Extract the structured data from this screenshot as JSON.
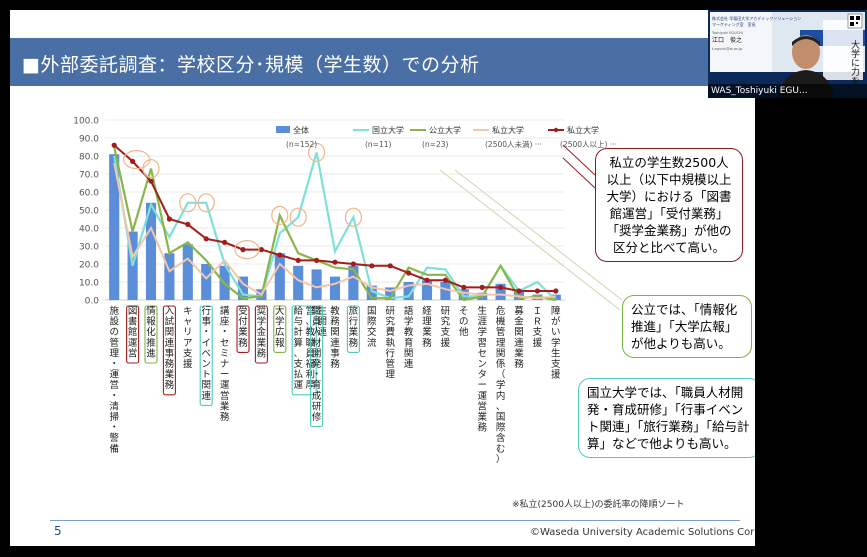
{
  "slide": {
    "title": "■外部委託調査：学校区分･規模（学生数）での分析",
    "page_number": "5",
    "copyright": "©Waseda University Academic Solutions Corporation",
    "note": "※私立(2500人以上)の委託率の降順ソート"
  },
  "callouts": {
    "private": "私立の学生数2500人以上（以下中規模以上大学）における「図書館運営」「受付業務」「奨学金業務」が他の区分と比べて高い。",
    "public": "公立では、「情報化推進」「大学広報」が他よりも高い。",
    "national": "国立大学では、「職員人材開発・育成研修」「行事イベント関連」「旅行業務」「給与計算」などで他よりも高い。"
  },
  "video": {
    "participant_id": "WAS_Toshiyuki EGU...",
    "banner_text": "大学に力を",
    "company_line1": "株式会社 早稲田大学アカデミックソリューション",
    "company_line2": "マーケティング室　室長",
    "name_line": "Toshiyuki EGUCHI",
    "name_ja": "江口　俊之",
    "email": "t.eguchi@w-as.jp"
  },
  "colors": {
    "banner": "#4a6fa5",
    "all": "#5b8ed8",
    "national": "#7ee0d6",
    "public": "#8bb54a",
    "private_small": "#f1c6ad",
    "private_large": "#a31d1d",
    "circle": "#f2b48a"
  },
  "chart_data": {
    "type": "bar",
    "ylim": [
      0,
      100
    ],
    "yticks": [
      "0.0",
      "10.0",
      "20.0",
      "30.0",
      "40.0",
      "50.0",
      "60.0",
      "70.0",
      "80.0",
      "90.0",
      "100.0"
    ],
    "categories": [
      "施設の管理・運営・清掃・警備",
      "図書館運営",
      "情報化推進",
      "入試関連事務業務",
      "キャリア支援",
      "行事・イベント関連",
      "講座・セミナー運営業務",
      "受付業務",
      "奨学金業務",
      "大学広報",
      "給与計算、支払運営、教職員福利厚生関連",
      "職員人材開発・育成研修",
      "教務関連事務",
      "旅行業務",
      "国際交流",
      "研究費執行管理",
      "語学教育関連",
      "経理業務",
      "研究支援",
      "その他",
      "生涯学習センター運営業務",
      "危機管理関係（学内、国際含む）",
      "募金関連業務",
      "ＩＲ支援",
      "障がい学生支援"
    ],
    "series": [
      {
        "name": "全体",
        "sub": "(n=152)",
        "type": "bar",
        "values": [
          81,
          38,
          54,
          26,
          31,
          20,
          19,
          13,
          6,
          26,
          19,
          17,
          13,
          19,
          8,
          7,
          10,
          11,
          10,
          6,
          4,
          9,
          5,
          3,
          3
        ]
      },
      {
        "name": "国立大学",
        "sub": "(n=11)",
        "type": "line",
        "values": [
          80,
          19,
          53,
          35,
          54,
          54,
          20,
          3,
          2,
          37,
          46,
          82,
          27,
          46,
          5,
          1,
          2,
          18,
          17,
          2,
          2,
          19,
          5,
          10,
          0
        ]
      },
      {
        "name": "公立大学",
        "sub": "(n=23)",
        "type": "line",
        "values": [
          85,
          38,
          73,
          26,
          32,
          22,
          9,
          1,
          2,
          47,
          26,
          22,
          18,
          17,
          1,
          1,
          18,
          14,
          14,
          0,
          2,
          19,
          1,
          2,
          0
        ]
      },
      {
        "name": "私立大学",
        "sub": "(2500人未満)",
        "extra": "···",
        "type": "line",
        "values": [
          76,
          24,
          40,
          16,
          23,
          12,
          22,
          9,
          3,
          20,
          11,
          7,
          9,
          13,
          7,
          5,
          8,
          9,
          6,
          4,
          3,
          3,
          2,
          1,
          2
        ]
      },
      {
        "name": "私立大学",
        "sub": "(2500人以上)",
        "extra": "···",
        "type": "line",
        "values": [
          86,
          77,
          66,
          45,
          42,
          34,
          32,
          28,
          28,
          25,
          22,
          22,
          21,
          20,
          19,
          19,
          15,
          11,
          11,
          7,
          7,
          7,
          5,
          5,
          5
        ]
      }
    ],
    "circled_indices": [
      1,
      8,
      12
    ],
    "circled_line_points": [
      {
        "series": 2,
        "index": 2
      },
      {
        "series": 1,
        "index": 4
      },
      {
        "series": 1,
        "index": 5
      },
      {
        "series": 2,
        "index": 9
      },
      {
        "series": 1,
        "index": 10
      },
      {
        "series": 1,
        "index": 11
      },
      {
        "series": 1,
        "index": 13
      }
    ]
  }
}
